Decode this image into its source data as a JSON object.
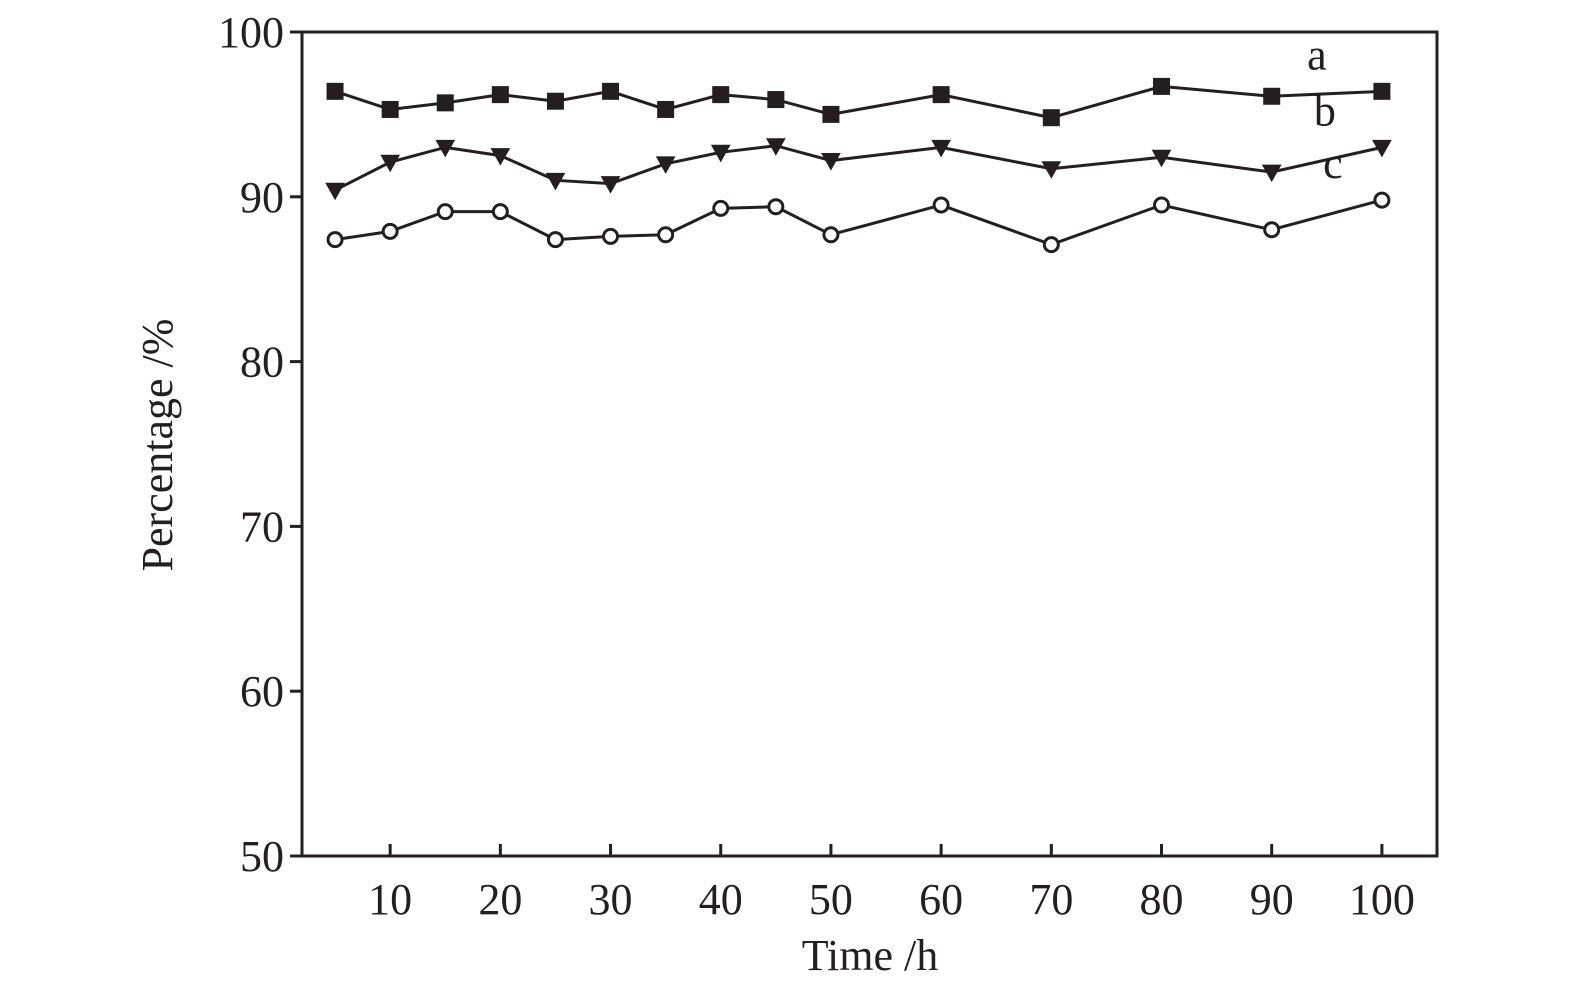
{
  "chart_data": {
    "type": "line",
    "x_label": "Time /h",
    "y_label": "Percentage /%",
    "x": [
      5,
      10,
      15,
      20,
      25,
      30,
      35,
      40,
      45,
      50,
      60,
      70,
      80,
      90,
      100
    ],
    "series": [
      {
        "name": "a",
        "color": "#231f20",
        "marker": "square",
        "values": [
          96.4,
          95.3,
          95.7,
          96.2,
          95.8,
          96.4,
          95.3,
          96.2,
          95.9,
          95.0,
          96.2,
          94.8,
          96.7,
          96.1,
          96.4
        ]
      },
      {
        "name": "b",
        "color": "#231f20",
        "marker": "triangle-down",
        "values": [
          90.4,
          92.1,
          93.0,
          92.5,
          91.0,
          90.8,
          92.0,
          92.7,
          93.1,
          92.2,
          93.0,
          91.7,
          92.4,
          91.5,
          93.0
        ]
      },
      {
        "name": "c",
        "color": "#231f20",
        "marker": "open-circle",
        "values": [
          87.4,
          87.9,
          89.1,
          89.1,
          87.4,
          87.6,
          87.7,
          89.3,
          89.4,
          87.7,
          89.5,
          87.1,
          89.5,
          88.0,
          89.8
        ]
      }
    ],
    "xlim": [
      2,
      105
    ],
    "ylim": [
      50,
      100
    ],
    "xticks": [
      10,
      20,
      30,
      40,
      50,
      60,
      70,
      80,
      90,
      100
    ],
    "yticks": [
      50,
      60,
      70,
      80,
      90,
      100
    ],
    "grid": false
  }
}
